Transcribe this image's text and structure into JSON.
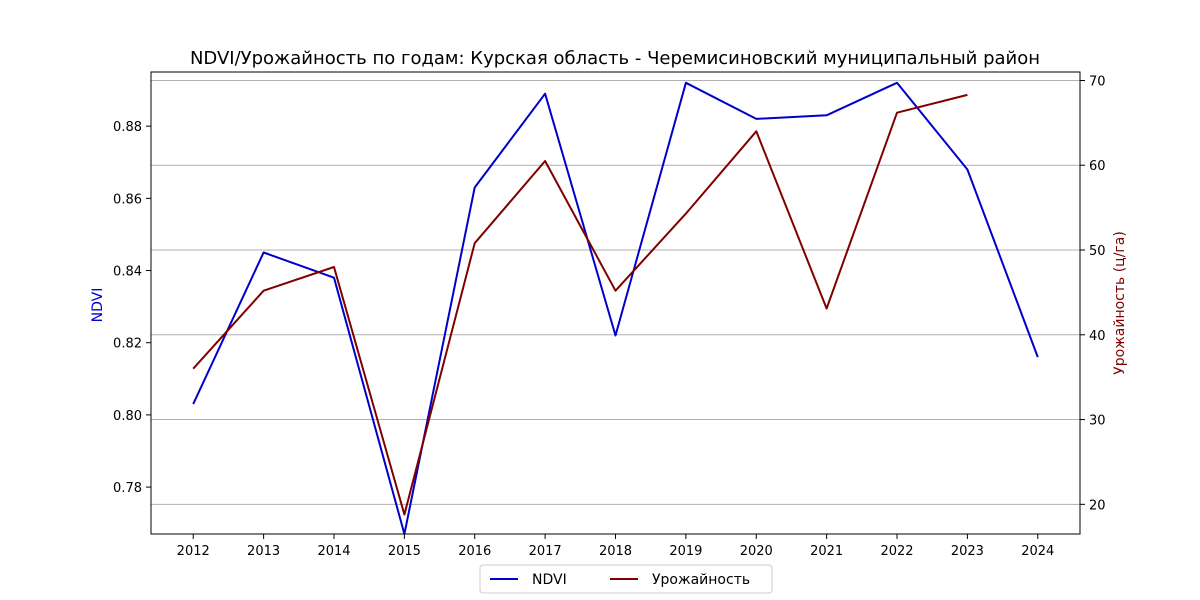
{
  "chart_data": {
    "type": "line",
    "title": "NDVI/Урожайность по годам: Курская область - Черемисиновский муниципальный район",
    "xlabel": "",
    "y_left_label": "NDVI",
    "y_right_label": "Урожайность (ц/га)",
    "x": [
      2012,
      2013,
      2014,
      2015,
      2016,
      2017,
      2018,
      2019,
      2020,
      2021,
      2022,
      2023,
      2024
    ],
    "x_ticks": [
      "2012",
      "2013",
      "2014",
      "2015",
      "2016",
      "2017",
      "2018",
      "2019",
      "2020",
      "2021",
      "2022",
      "2023",
      "2024"
    ],
    "y_left_ticks": [
      "0.78",
      "0.80",
      "0.82",
      "0.84",
      "0.86",
      "0.88"
    ],
    "y_right_ticks": [
      "20",
      "30",
      "40",
      "50",
      "60",
      "70"
    ],
    "y_left_lim": [
      0.767,
      0.895
    ],
    "y_right_lim": [
      16.5,
      71.0
    ],
    "series": [
      {
        "name": "NDVI",
        "axis": "left",
        "color": "#0000cc",
        "values": [
          0.803,
          0.845,
          0.838,
          0.767,
          0.863,
          0.889,
          0.822,
          0.892,
          0.882,
          0.883,
          0.892,
          0.868,
          0.816
        ]
      },
      {
        "name": "Урожайность",
        "axis": "right",
        "color": "#800000",
        "values": [
          36.0,
          45.2,
          48.0,
          18.8,
          50.8,
          60.5,
          45.2,
          54.3,
          64.0,
          43.1,
          66.2,
          68.3,
          null
        ]
      }
    ],
    "grid": "horizontal on right axis",
    "legend_placement": "bottom-center"
  }
}
